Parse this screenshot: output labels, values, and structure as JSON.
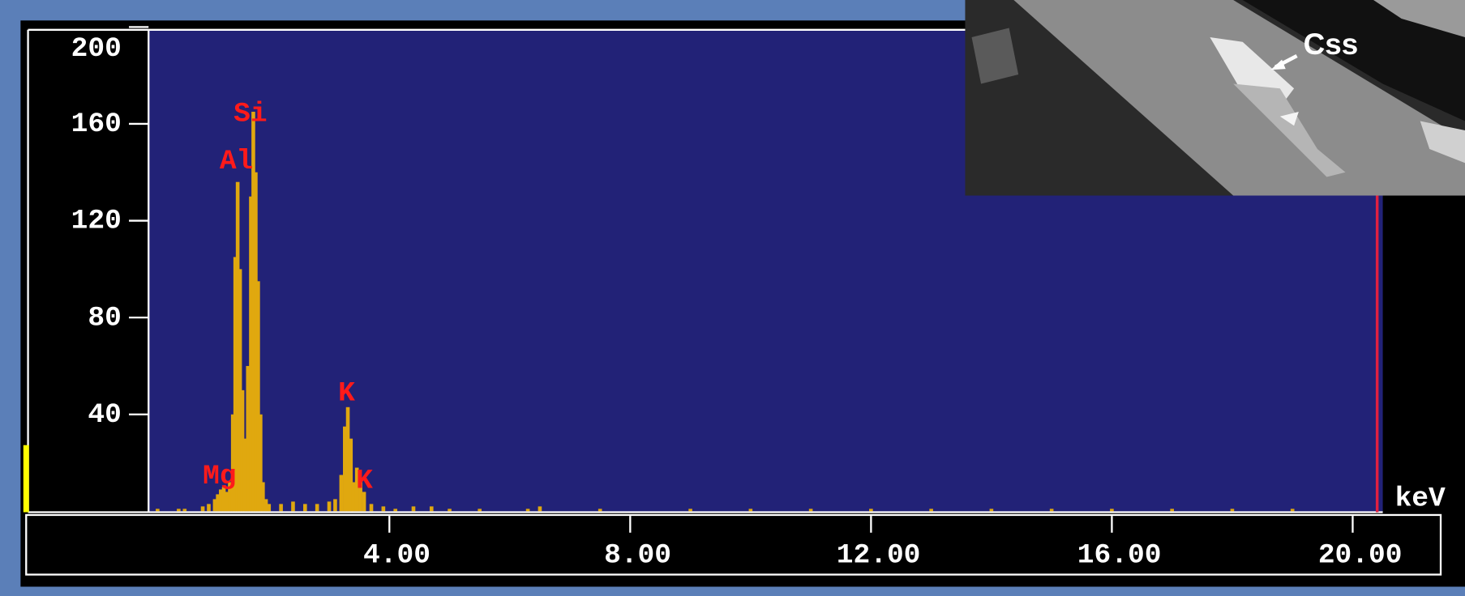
{
  "chart_data": {
    "type": "bar",
    "x_label": "keV",
    "inset_label": "Css",
    "annotations": [
      "Si",
      "Al",
      "Mg",
      "K",
      "K"
    ],
    "x": [
      0.15,
      0.5,
      0.6,
      0.9,
      1.0,
      1.1,
      1.15,
      1.2,
      1.25,
      1.3,
      1.35,
      1.4,
      1.44,
      1.48,
      1.52,
      1.56,
      1.6,
      1.65,
      1.7,
      1.74,
      1.78,
      1.82,
      1.86,
      1.9,
      1.95,
      2.0,
      2.2,
      2.4,
      2.6,
      2.8,
      3.0,
      3.1,
      3.2,
      3.26,
      3.31,
      3.36,
      3.4,
      3.46,
      3.52,
      3.58,
      3.7,
      3.9,
      4.1,
      4.4,
      4.7,
      5.0,
      5.5,
      6.3,
      6.5,
      7.5,
      9,
      10,
      11,
      12,
      13,
      14,
      15,
      16,
      17,
      18,
      19
    ],
    "values": [
      1,
      1,
      1,
      2,
      3,
      5,
      7,
      9,
      10,
      8,
      12,
      40,
      105,
      136,
      100,
      50,
      30,
      60,
      130,
      165,
      140,
      95,
      40,
      12,
      5,
      3,
      3,
      4,
      3,
      3,
      4,
      5,
      15,
      35,
      43,
      30,
      12,
      18,
      12,
      8,
      3,
      2,
      1,
      2,
      2,
      1,
      1,
      1,
      2,
      1,
      1,
      1,
      1,
      1,
      1,
      1,
      1,
      1,
      1,
      1,
      1
    ],
    "color": "#e0a80f",
    "xlim": [
      0,
      20.5
    ],
    "ylim": [
      0,
      200
    ],
    "xticks": [
      {
        "value": 4,
        "label": "4.00"
      },
      {
        "value": 8,
        "label": "8.00"
      },
      {
        "value": 12,
        "label": "12.00"
      },
      {
        "value": 16,
        "label": "16.00"
      },
      {
        "value": 20,
        "label": "20.00"
      }
    ],
    "yticks": [
      40,
      80,
      120,
      160,
      200
    ]
  }
}
